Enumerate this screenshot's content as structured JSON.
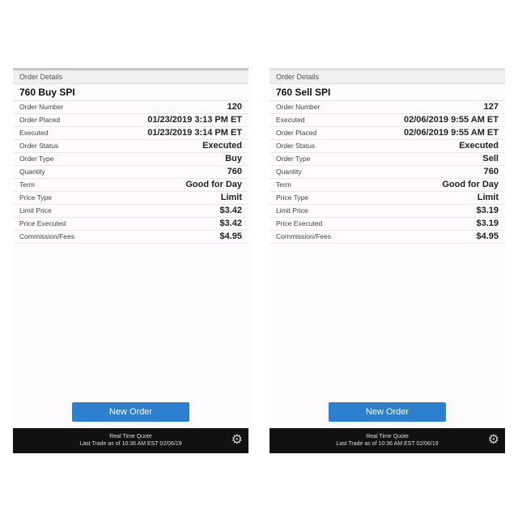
{
  "panels": [
    {
      "header": "Order Details",
      "title": "760 Buy SPI",
      "rows": [
        [
          "Order Number",
          "120"
        ],
        [
          "Order Placed",
          "01/23/2019 3:13 PM ET"
        ],
        [
          "Executed",
          "01/23/2019 3:14 PM ET"
        ],
        [
          "Order Status",
          "Executed"
        ],
        [
          "Order Type",
          "Buy"
        ],
        [
          "Quantity",
          "760"
        ],
        [
          "Term",
          "Good for Day"
        ],
        [
          "Price Type",
          "Limit"
        ],
        [
          "Limit Price",
          "$3.42"
        ],
        [
          "Price Executed",
          "$3.42"
        ],
        [
          "Commission/Fees",
          "$4.95"
        ]
      ],
      "button": "New Order",
      "footer_line1": "Real Time Quote",
      "footer_line2": "Last Trade as of 10:36 AM EST 02/06/19",
      "settings_icon": "gear-icon"
    },
    {
      "header": "Order Details",
      "title": "760 Sell SPI",
      "rows": [
        [
          "Order Number",
          "127"
        ],
        [
          "Executed",
          "02/06/2019 9:55 AM ET"
        ],
        [
          "Order Placed",
          "02/06/2019 9:55 AM ET"
        ],
        [
          "Order Status",
          "Executed"
        ],
        [
          "Order Type",
          "Sell"
        ],
        [
          "Quantity",
          "760"
        ],
        [
          "Term",
          "Good for Day"
        ],
        [
          "Price Type",
          "Limit"
        ],
        [
          "Limit Price",
          "$3.19"
        ],
        [
          "Price Executed",
          "$3.19"
        ],
        [
          "Commission/Fees",
          "$4.95"
        ]
      ],
      "button": "New Order",
      "footer_line1": "Real Time Quote",
      "footer_line2": "Last Trade as of 10:36 AM EST 02/06/19",
      "settings_icon": "gear-icon"
    }
  ],
  "colors": {
    "button": "#2d7fcf",
    "footer": "#111111"
  }
}
